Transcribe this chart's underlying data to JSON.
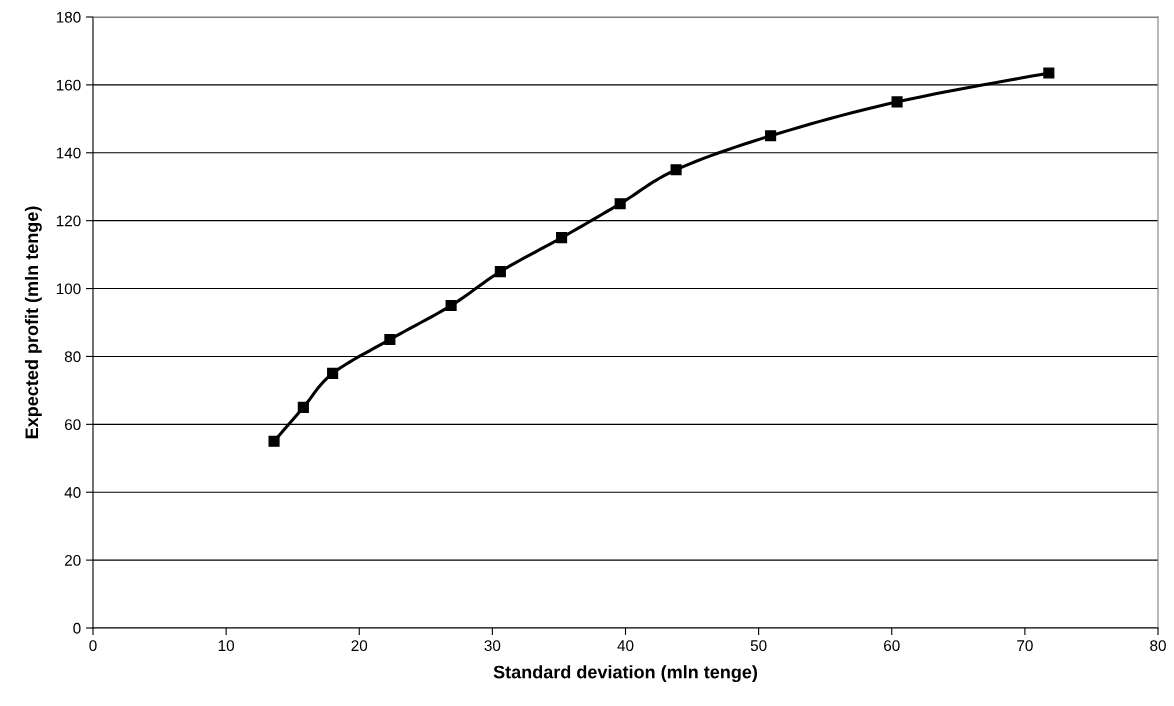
{
  "chart_data": {
    "type": "line",
    "xlabel": "Standard deviation (mln tenge)",
    "ylabel": "Expected profit (mln tenge)",
    "series": [
      {
        "color": "#000000",
        "x": [
          13.6,
          15.8,
          18.0,
          22.3,
          26.9,
          30.6,
          35.2,
          39.6,
          43.8,
          50.9,
          60.4,
          71.8
        ],
        "values": [
          55,
          65,
          75,
          85,
          95,
          105,
          115,
          125,
          135,
          145,
          155,
          163.5
        ]
      }
    ],
    "xlim": [
      0,
      80
    ],
    "xticks": [
      0,
      10,
      20,
      30,
      40,
      50,
      60,
      70,
      80
    ],
    "ylim": [
      0,
      180
    ],
    "yticks": [
      0,
      20,
      40,
      60,
      80,
      100,
      120,
      140,
      160,
      180
    ],
    "grid": "y",
    "marker": "square",
    "line_style": "solid"
  }
}
